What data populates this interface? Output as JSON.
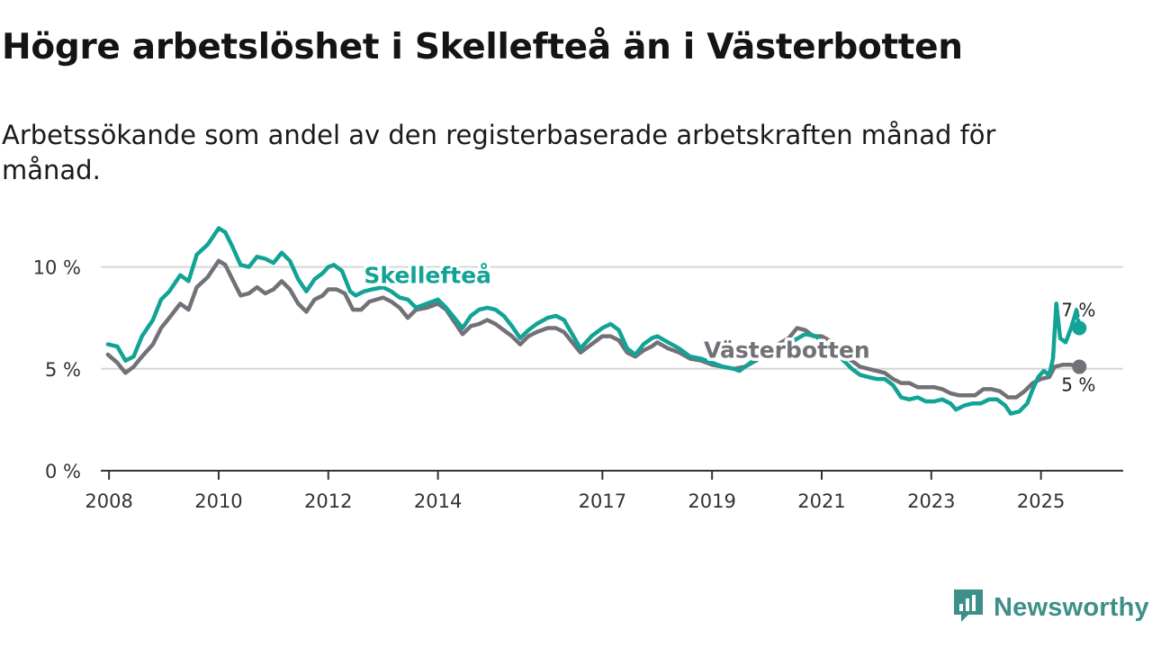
{
  "header": {
    "title": "Högre arbetslöshet i Skellefteå än i Västerbotten",
    "subtitle": "Arbetssökande som andel av den registerbaserade arbetskraften månad för månad."
  },
  "brand": {
    "name": "Newsworthy",
    "icon": "newsworthy-logo-icon"
  },
  "colors": {
    "skelleftea": "#12a396",
    "vasterbotten": "#737178",
    "grid": "#d6d6d6",
    "axis": "#333333"
  },
  "chart_data": {
    "type": "line",
    "title": "Högre arbetslöshet i Skellefteå än i Västerbotten",
    "xlabel": "",
    "ylabel": "",
    "ylim": [
      0,
      12.5
    ],
    "xlim": [
      2007.85,
      2026.5
    ],
    "yticks": [
      {
        "value": 0,
        "label": "0 %"
      },
      {
        "value": 5,
        "label": "5 %"
      },
      {
        "value": 10,
        "label": "10 %"
      }
    ],
    "xticks": [
      {
        "value": 2008,
        "label": "2008"
      },
      {
        "value": 2010,
        "label": "2010"
      },
      {
        "value": 2012,
        "label": "2012"
      },
      {
        "value": 2014,
        "label": "2014"
      },
      {
        "value": 2017,
        "label": "2017"
      },
      {
        "value": 2019,
        "label": "2019"
      },
      {
        "value": 2021,
        "label": "2021"
      },
      {
        "value": 2023,
        "label": "2023"
      },
      {
        "value": 2025,
        "label": "2025"
      }
    ],
    "grid": true,
    "series": [
      {
        "name": "Skellefteå",
        "color_key": "skelleftea",
        "label_x": 2012.65,
        "label_y": 9.2,
        "end_label": "7 %",
        "points": [
          [
            2007.98,
            6.2
          ],
          [
            2008.15,
            6.1
          ],
          [
            2008.3,
            5.4
          ],
          [
            2008.45,
            5.6
          ],
          [
            2008.6,
            6.6
          ],
          [
            2008.8,
            7.4
          ],
          [
            2008.95,
            8.4
          ],
          [
            2009.1,
            8.8
          ],
          [
            2009.3,
            9.6
          ],
          [
            2009.45,
            9.3
          ],
          [
            2009.6,
            10.6
          ],
          [
            2009.8,
            11.1
          ],
          [
            2010.0,
            11.9
          ],
          [
            2010.12,
            11.7
          ],
          [
            2010.25,
            11.0
          ],
          [
            2010.4,
            10.1
          ],
          [
            2010.55,
            10.0
          ],
          [
            2010.7,
            10.5
          ],
          [
            2010.85,
            10.4
          ],
          [
            2011.0,
            10.2
          ],
          [
            2011.15,
            10.7
          ],
          [
            2011.3,
            10.3
          ],
          [
            2011.45,
            9.4
          ],
          [
            2011.6,
            8.8
          ],
          [
            2011.75,
            9.4
          ],
          [
            2011.9,
            9.7
          ],
          [
            2012.0,
            10.0
          ],
          [
            2012.1,
            10.1
          ],
          [
            2012.25,
            9.8
          ],
          [
            2012.4,
            8.8
          ],
          [
            2012.5,
            8.6
          ],
          [
            2012.65,
            8.8
          ],
          [
            2012.8,
            8.9
          ],
          [
            2013.0,
            9.0
          ],
          [
            2013.15,
            8.8
          ],
          [
            2013.3,
            8.5
          ],
          [
            2013.45,
            8.4
          ],
          [
            2013.6,
            8.0
          ],
          [
            2013.8,
            8.2
          ],
          [
            2014.0,
            8.4
          ],
          [
            2014.15,
            8.0
          ],
          [
            2014.3,
            7.5
          ],
          [
            2014.45,
            7.0
          ],
          [
            2014.6,
            7.6
          ],
          [
            2014.75,
            7.9
          ],
          [
            2014.9,
            8.0
          ],
          [
            2015.05,
            7.9
          ],
          [
            2015.2,
            7.6
          ],
          [
            2015.35,
            7.1
          ],
          [
            2015.5,
            6.5
          ],
          [
            2015.65,
            6.9
          ],
          [
            2015.8,
            7.2
          ],
          [
            2016.0,
            7.5
          ],
          [
            2016.15,
            7.6
          ],
          [
            2016.3,
            7.4
          ],
          [
            2016.45,
            6.7
          ],
          [
            2016.6,
            6.0
          ],
          [
            2016.8,
            6.6
          ],
          [
            2017.0,
            7.0
          ],
          [
            2017.15,
            7.2
          ],
          [
            2017.3,
            6.9
          ],
          [
            2017.45,
            6.0
          ],
          [
            2017.6,
            5.7
          ],
          [
            2017.75,
            6.2
          ],
          [
            2017.9,
            6.5
          ],
          [
            2018.0,
            6.6
          ],
          [
            2018.2,
            6.3
          ],
          [
            2018.4,
            6.0
          ],
          [
            2018.6,
            5.6
          ],
          [
            2018.8,
            5.5
          ],
          [
            2019.0,
            5.3
          ],
          [
            2019.2,
            5.1
          ],
          [
            2019.4,
            5.0
          ],
          [
            2019.5,
            4.9
          ],
          [
            2019.7,
            5.3
          ],
          [
            2019.9,
            5.6
          ],
          [
            2020.1,
            5.8
          ],
          [
            2020.3,
            6.0
          ],
          [
            2020.5,
            6.4
          ],
          [
            2020.7,
            6.7
          ],
          [
            2020.9,
            6.6
          ],
          [
            2021.0,
            6.3
          ],
          [
            2021.2,
            6.0
          ],
          [
            2021.4,
            5.4
          ],
          [
            2021.55,
            5.0
          ],
          [
            2021.7,
            4.7
          ],
          [
            2021.85,
            4.6
          ],
          [
            2022.0,
            4.5
          ],
          [
            2022.15,
            4.5
          ],
          [
            2022.3,
            4.2
          ],
          [
            2022.45,
            3.6
          ],
          [
            2022.6,
            3.5
          ],
          [
            2022.75,
            3.6
          ],
          [
            2022.9,
            3.4
          ],
          [
            2023.05,
            3.4
          ],
          [
            2023.2,
            3.5
          ],
          [
            2023.35,
            3.3
          ],
          [
            2023.45,
            3.0
          ],
          [
            2023.6,
            3.2
          ],
          [
            2023.75,
            3.3
          ],
          [
            2023.9,
            3.3
          ],
          [
            2024.05,
            3.5
          ],
          [
            2024.2,
            3.5
          ],
          [
            2024.35,
            3.2
          ],
          [
            2024.45,
            2.8
          ],
          [
            2024.6,
            2.9
          ],
          [
            2024.75,
            3.3
          ],
          [
            2024.85,
            4.0
          ],
          [
            2024.95,
            4.6
          ],
          [
            2025.05,
            4.9
          ],
          [
            2025.15,
            4.7
          ],
          [
            2025.22,
            5.5
          ],
          [
            2025.28,
            8.2
          ],
          [
            2025.35,
            6.5
          ],
          [
            2025.45,
            6.3
          ],
          [
            2025.55,
            7.0
          ],
          [
            2025.65,
            7.9
          ],
          [
            2025.7,
            7.0
          ]
        ]
      },
      {
        "name": "Västerbotten",
        "color_key": "vasterbotten",
        "label_x": 2018.85,
        "label_y": 5.55,
        "end_label": "5 %",
        "points": [
          [
            2007.98,
            5.7
          ],
          [
            2008.15,
            5.3
          ],
          [
            2008.3,
            4.8
          ],
          [
            2008.45,
            5.1
          ],
          [
            2008.6,
            5.6
          ],
          [
            2008.8,
            6.2
          ],
          [
            2008.95,
            7.0
          ],
          [
            2009.1,
            7.5
          ],
          [
            2009.3,
            8.2
          ],
          [
            2009.45,
            7.9
          ],
          [
            2009.6,
            9.0
          ],
          [
            2009.8,
            9.5
          ],
          [
            2010.0,
            10.3
          ],
          [
            2010.12,
            10.1
          ],
          [
            2010.25,
            9.4
          ],
          [
            2010.4,
            8.6
          ],
          [
            2010.55,
            8.7
          ],
          [
            2010.7,
            9.0
          ],
          [
            2010.85,
            8.7
          ],
          [
            2011.0,
            8.9
          ],
          [
            2011.15,
            9.3
          ],
          [
            2011.3,
            8.9
          ],
          [
            2011.45,
            8.2
          ],
          [
            2011.6,
            7.8
          ],
          [
            2011.75,
            8.4
          ],
          [
            2011.9,
            8.6
          ],
          [
            2012.0,
            8.9
          ],
          [
            2012.15,
            8.9
          ],
          [
            2012.3,
            8.7
          ],
          [
            2012.45,
            7.9
          ],
          [
            2012.6,
            7.9
          ],
          [
            2012.75,
            8.3
          ],
          [
            2013.0,
            8.5
          ],
          [
            2013.15,
            8.3
          ],
          [
            2013.3,
            8.0
          ],
          [
            2013.45,
            7.5
          ],
          [
            2013.6,
            7.9
          ],
          [
            2013.8,
            8.0
          ],
          [
            2014.0,
            8.2
          ],
          [
            2014.15,
            7.9
          ],
          [
            2014.3,
            7.3
          ],
          [
            2014.45,
            6.7
          ],
          [
            2014.6,
            7.1
          ],
          [
            2014.75,
            7.2
          ],
          [
            2014.9,
            7.4
          ],
          [
            2015.05,
            7.2
          ],
          [
            2015.2,
            6.9
          ],
          [
            2015.35,
            6.6
          ],
          [
            2015.5,
            6.2
          ],
          [
            2015.65,
            6.6
          ],
          [
            2015.8,
            6.8
          ],
          [
            2016.0,
            7.0
          ],
          [
            2016.15,
            7.0
          ],
          [
            2016.3,
            6.8
          ],
          [
            2016.45,
            6.3
          ],
          [
            2016.6,
            5.8
          ],
          [
            2016.8,
            6.2
          ],
          [
            2017.0,
            6.6
          ],
          [
            2017.15,
            6.6
          ],
          [
            2017.3,
            6.4
          ],
          [
            2017.45,
            5.8
          ],
          [
            2017.6,
            5.6
          ],
          [
            2017.75,
            5.9
          ],
          [
            2017.9,
            6.1
          ],
          [
            2018.0,
            6.3
          ],
          [
            2018.2,
            6.0
          ],
          [
            2018.4,
            5.8
          ],
          [
            2018.6,
            5.5
          ],
          [
            2018.8,
            5.4
          ],
          [
            2019.0,
            5.2
          ],
          [
            2019.2,
            5.1
          ],
          [
            2019.4,
            5.0
          ],
          [
            2019.6,
            5.1
          ],
          [
            2019.8,
            5.4
          ],
          [
            2020.0,
            5.8
          ],
          [
            2020.2,
            6.2
          ],
          [
            2020.4,
            6.5
          ],
          [
            2020.55,
            7.0
          ],
          [
            2020.7,
            6.9
          ],
          [
            2020.85,
            6.6
          ],
          [
            2021.0,
            6.6
          ],
          [
            2021.2,
            6.3
          ],
          [
            2021.4,
            5.6
          ],
          [
            2021.55,
            5.4
          ],
          [
            2021.7,
            5.1
          ],
          [
            2021.85,
            5.0
          ],
          [
            2022.0,
            4.9
          ],
          [
            2022.15,
            4.8
          ],
          [
            2022.3,
            4.5
          ],
          [
            2022.45,
            4.3
          ],
          [
            2022.6,
            4.3
          ],
          [
            2022.75,
            4.1
          ],
          [
            2022.9,
            4.1
          ],
          [
            2023.05,
            4.1
          ],
          [
            2023.2,
            4.0
          ],
          [
            2023.35,
            3.8
          ],
          [
            2023.5,
            3.7
          ],
          [
            2023.65,
            3.7
          ],
          [
            2023.8,
            3.7
          ],
          [
            2023.95,
            4.0
          ],
          [
            2024.1,
            4.0
          ],
          [
            2024.25,
            3.9
          ],
          [
            2024.4,
            3.6
          ],
          [
            2024.55,
            3.6
          ],
          [
            2024.7,
            3.9
          ],
          [
            2024.85,
            4.3
          ],
          [
            2025.0,
            4.5
          ],
          [
            2025.15,
            4.6
          ],
          [
            2025.25,
            5.1
          ],
          [
            2025.4,
            5.2
          ],
          [
            2025.55,
            5.2
          ],
          [
            2025.7,
            5.1
          ]
        ]
      }
    ]
  }
}
